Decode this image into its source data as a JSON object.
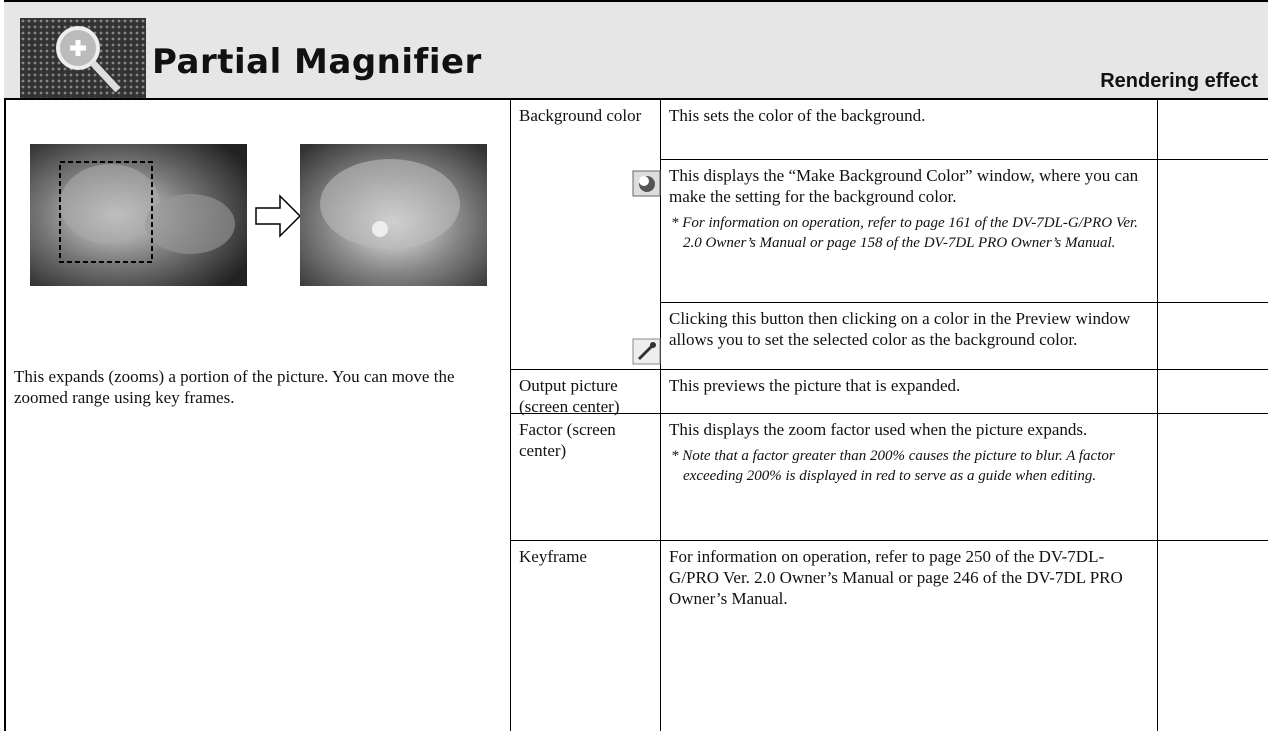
{
  "header": {
    "title": "Partial Magnifier",
    "section": "Rendering effect"
  },
  "intro": {
    "text": "This expands (zooms) a portion of the picture. You can move the zoomed range using key frames."
  },
  "table": {
    "rows": [
      {
        "label": "Background color",
        "description": "This sets the color of the background."
      },
      {
        "description": "This displays the “Make Background Color” window, where you can make the setting for the background color.",
        "note": "* For information on operation, refer to page 161 of the DV-7DL-G/PRO Ver. 2.0 Owner’s Manual or page 158 of the DV-7DL PRO Owner’s Manual."
      },
      {
        "description": "Clicking this button then clicking on a color in the Preview window allows you to set the selected color as the background color."
      },
      {
        "label": "Output picture (screen center)",
        "description": "This previews the picture that is expanded."
      },
      {
        "label": "Factor (screen center)",
        "description": "This displays the zoom factor used when the picture expands.",
        "note": "* Note that a factor greater than 200% causes the picture to blur. A factor exceeding 200% is displayed in red to serve as a guide when editing."
      },
      {
        "label": "Keyframe",
        "description": "For information on operation, refer to page 250 of the DV-7DL-G/PRO Ver. 2.0 Owner’s Manual or page 246 of the DV-7DL PRO Owner’s Manual."
      }
    ]
  }
}
